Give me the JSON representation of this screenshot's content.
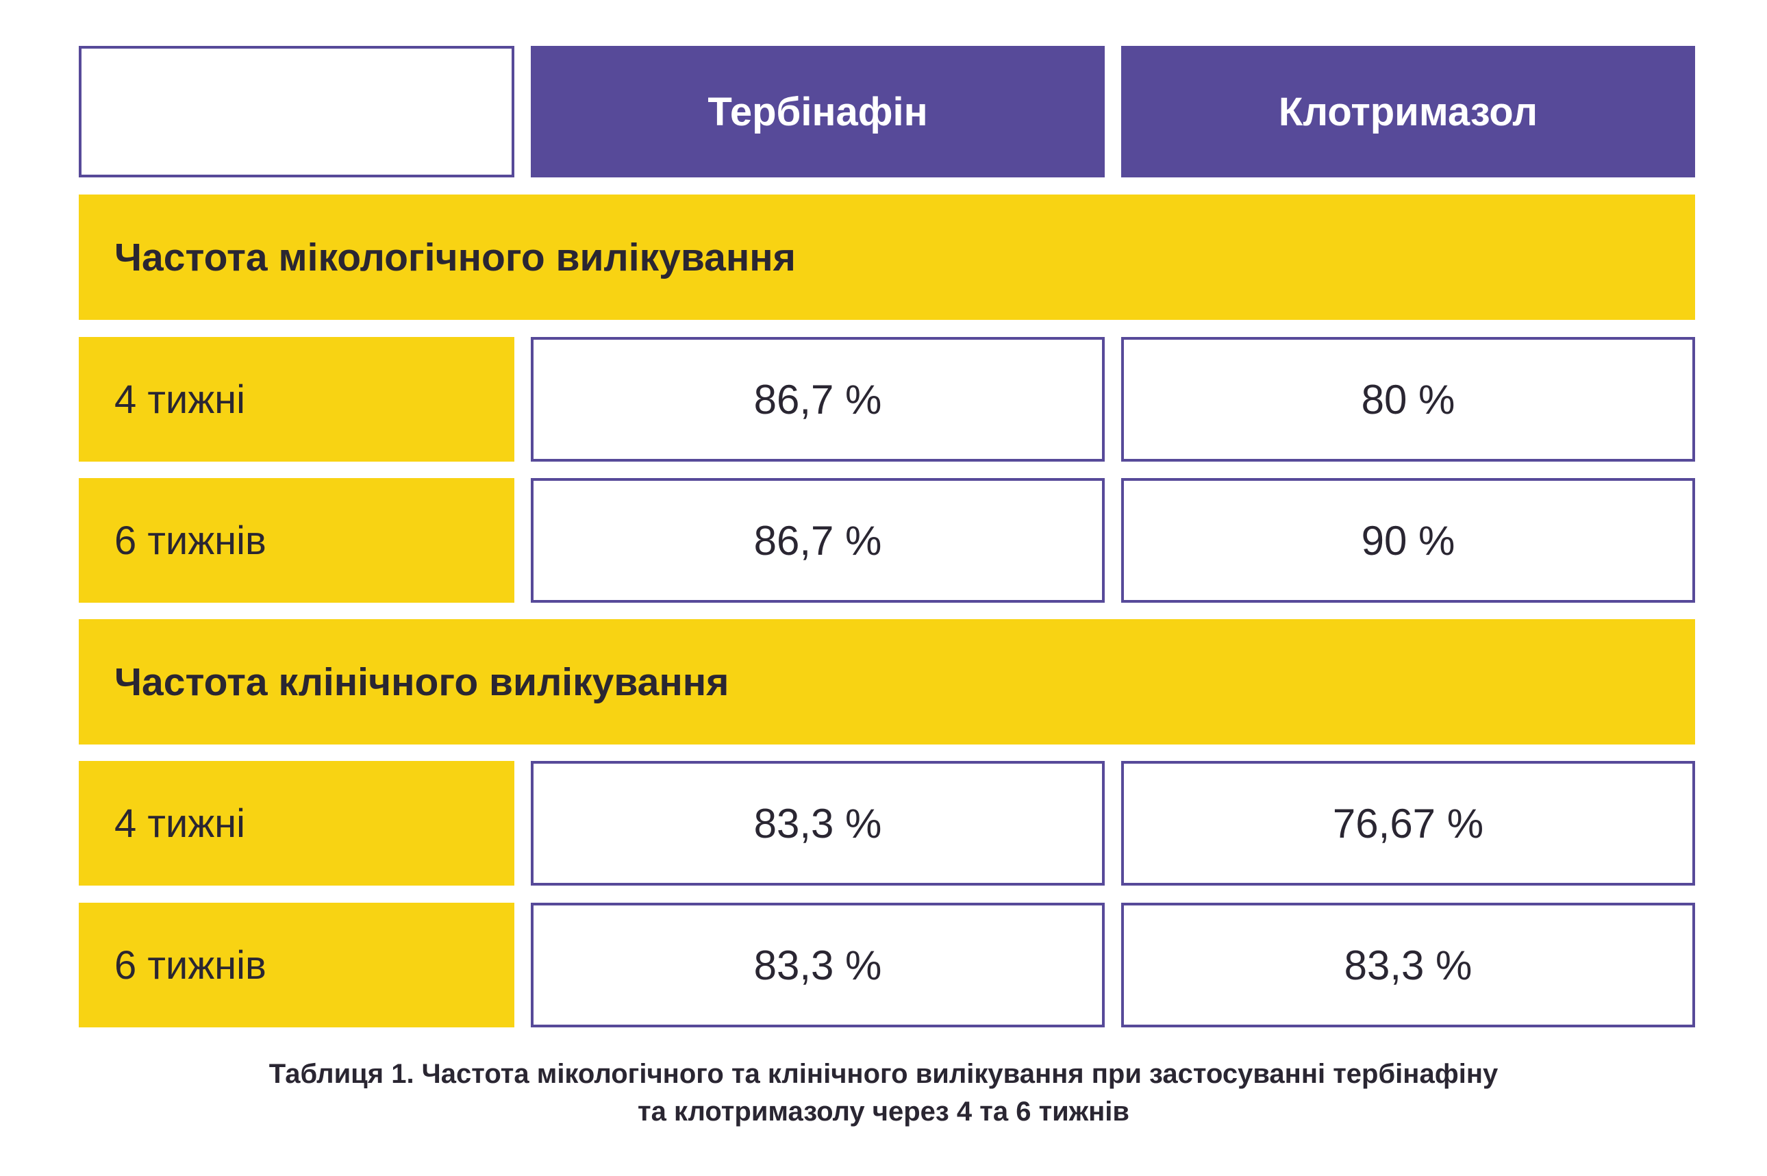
{
  "header": {
    "col1": "Тербінафін",
    "col2": "Клотримазол"
  },
  "sections": [
    {
      "title": "Частота мікологічного вилікування",
      "rows": [
        {
          "label": "4 тижні",
          "terbinafine": "86,7 %",
          "clotrimazole": "80 %"
        },
        {
          "label": "6 тижнів",
          "terbinafine": "86,7 %",
          "clotrimazole": "90 %"
        }
      ]
    },
    {
      "title": "Частота клінічного вилікування",
      "rows": [
        {
          "label": "4 тижні",
          "terbinafine": "83,3 %",
          "clotrimazole": "76,67 %"
        },
        {
          "label": "6 тижнів",
          "terbinafine": "83,3 %",
          "clotrimazole": "83,3 %"
        }
      ]
    }
  ],
  "caption": {
    "line1": "Таблиця 1. Частота мікологічного та клінічного вилікування при застосуванні тербінафіну",
    "line2": "та клотримазолу через 4 та 6 тижнів"
  },
  "colors": {
    "purple": "#574a99",
    "yellow": "#f8d313",
    "text": "#2a2632"
  }
}
